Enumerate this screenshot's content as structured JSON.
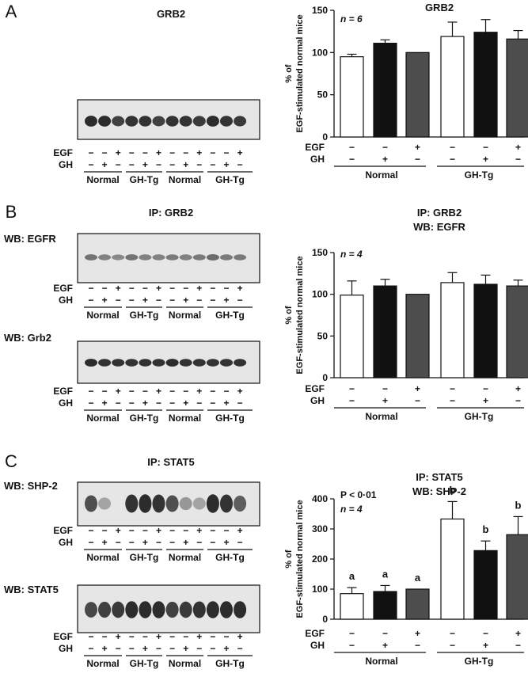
{
  "colors": {
    "ink": "#111111",
    "white_bar": "#ffffff",
    "black_bar": "#111111",
    "gray_bar": "#4d4d4d",
    "blot_bg": "#e6e6e6",
    "band": "#1a1a1a"
  },
  "row_labels": {
    "egf": "EGF",
    "gh": "GH",
    "plus": "+",
    "minus": "−"
  },
  "blot_egf": [
    "−",
    "−",
    "+",
    "−",
    "−",
    "+",
    "−",
    "−",
    "+",
    "−",
    "−",
    "+"
  ],
  "blot_gh": [
    "−",
    "+",
    "−",
    "−",
    "+",
    "−",
    "−",
    "+",
    "−",
    "−",
    "+",
    "−"
  ],
  "bar_egf": [
    "−",
    "−",
    "+",
    "−",
    "−",
    "+"
  ],
  "bar_gh": [
    "−",
    "+",
    "−",
    "−",
    "+",
    "−"
  ],
  "blot_groups": [
    "Normal",
    "GH-Tg",
    "Normal",
    "GH-Tg"
  ],
  "panels": [
    {
      "letter": "A",
      "blot_title_lines": [
        "GRB2"
      ],
      "wb_labels": [],
      "chart_title_lines": [
        "GRB2"
      ],
      "n_text": "n = 6",
      "p_text": ""
    },
    {
      "letter": "B",
      "blot_title_lines": [
        "IP: GRB2"
      ],
      "wb_labels": [
        "WB: EGFR",
        "WB: Grb2"
      ],
      "chart_title_lines": [
        "IP: GRB2",
        "WB: EGFR"
      ],
      "n_text": "n = 4",
      "p_text": ""
    },
    {
      "letter": "C",
      "blot_title_lines": [
        "IP: STAT5"
      ],
      "wb_labels": [
        "WB: SHP-2",
        "WB: STAT5"
      ],
      "chart_title_lines": [
        "IP: STAT5",
        "WB: SHP-2"
      ],
      "n_text": "n = 4",
      "p_text": "P < 0·01"
    }
  ],
  "chart_data": [
    {
      "type": "bar",
      "title": "GRB2",
      "ylabel": "% of EGF-stimulated normal mice",
      "ylim": [
        0,
        150
      ],
      "yticks": [
        0,
        50,
        100,
        150
      ],
      "groups": [
        "Normal",
        "GH-Tg"
      ],
      "values": [
        95,
        111,
        100,
        119,
        124,
        116
      ],
      "errors": [
        3,
        4,
        0,
        17,
        15,
        10
      ],
      "letters": [],
      "grid": false
    },
    {
      "type": "bar",
      "title": "IP: GRB2 WB: EGFR",
      "ylabel": "% of EGF-stimulated normal mice",
      "ylim": [
        0,
        150
      ],
      "yticks": [
        0,
        50,
        100,
        150
      ],
      "groups": [
        "Normal",
        "GH-Tg"
      ],
      "values": [
        99,
        110,
        100,
        114,
        112,
        110
      ],
      "errors": [
        17,
        8,
        0,
        12,
        11,
        7
      ],
      "letters": [],
      "grid": false
    },
    {
      "type": "bar",
      "title": "IP: STAT5 WB: SHP-2",
      "ylabel": "% of EGF-stimulated normal mice",
      "ylim": [
        0,
        400
      ],
      "yticks": [
        0,
        100,
        200,
        300,
        400
      ],
      "groups": [
        "Normal",
        "GH-Tg"
      ],
      "values": [
        85,
        92,
        100,
        333,
        228,
        281
      ],
      "errors": [
        20,
        20,
        0,
        58,
        32,
        60
      ],
      "letters": [
        "a",
        "a",
        "a",
        "b",
        "b",
        "b"
      ],
      "grid": false
    }
  ]
}
